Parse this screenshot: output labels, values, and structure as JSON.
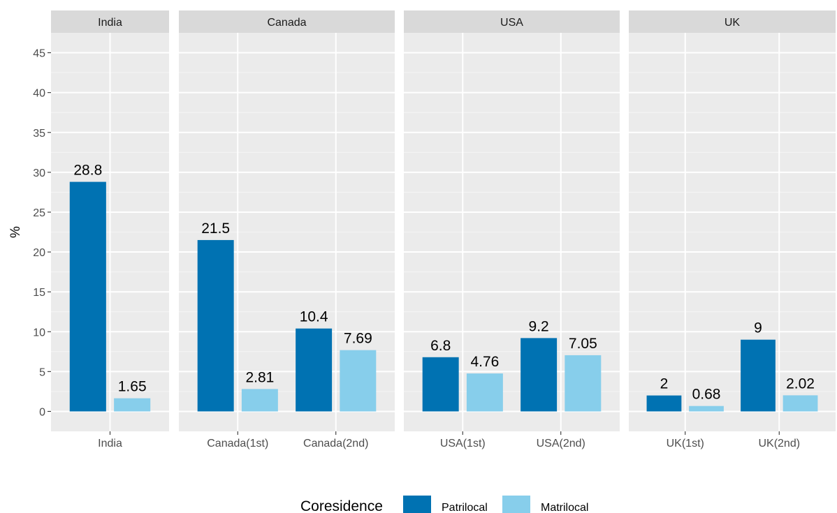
{
  "chart_data": {
    "type": "bar",
    "ylabel": "%",
    "ylim": [
      -2.5,
      47.5
    ],
    "yticks": [
      0,
      5,
      10,
      15,
      20,
      25,
      30,
      35,
      40,
      45
    ],
    "grid": true,
    "legend": {
      "title": "Coresidence",
      "position": "bottom",
      "entries": [
        {
          "name": "Patrilocal",
          "color": "#0072B2"
        },
        {
          "name": "Matrilocal",
          "color": "#87CEEB"
        }
      ]
    },
    "facets": [
      {
        "title": "India",
        "categories": [
          "India"
        ],
        "series": [
          {
            "name": "Patrilocal",
            "values": [
              28.8
            ]
          },
          {
            "name": "Matrilocal",
            "values": [
              1.65
            ]
          }
        ],
        "labels": [
          [
            "28.8"
          ],
          [
            "1.65"
          ]
        ]
      },
      {
        "title": "Canada",
        "categories": [
          "Canada(1st)",
          "Canada(2nd)"
        ],
        "series": [
          {
            "name": "Patrilocal",
            "values": [
              21.5,
              10.4
            ]
          },
          {
            "name": "Matrilocal",
            "values": [
              2.81,
              7.69
            ]
          }
        ],
        "labels": [
          [
            "21.5",
            "10.4"
          ],
          [
            "2.81",
            "7.69"
          ]
        ]
      },
      {
        "title": "USA",
        "categories": [
          "USA(1st)",
          "USA(2nd)"
        ],
        "series": [
          {
            "name": "Patrilocal",
            "values": [
              6.8,
              9.2
            ]
          },
          {
            "name": "Matrilocal",
            "values": [
              4.76,
              7.05
            ]
          }
        ],
        "labels": [
          [
            "6.8",
            "9.2"
          ],
          [
            "4.76",
            "7.05"
          ]
        ]
      },
      {
        "title": "UK",
        "categories": [
          "UK(1st)",
          "UK(2nd)"
        ],
        "series": [
          {
            "name": "Patrilocal",
            "values": [
              2,
              9
            ]
          },
          {
            "name": "Matrilocal",
            "values": [
              0.68,
              2.02
            ]
          }
        ],
        "labels": [
          [
            "2",
            "9"
          ],
          [
            "0.68",
            "2.02"
          ]
        ]
      }
    ]
  }
}
